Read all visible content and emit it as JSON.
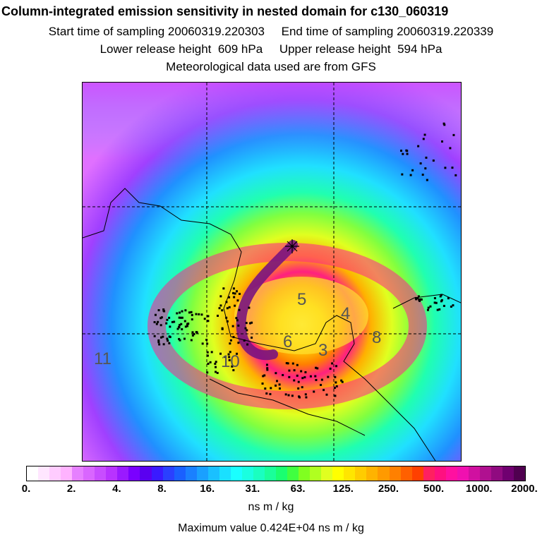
{
  "header": {
    "title": "Column-integrated emission sensitivity in nested domain for c130_060319",
    "start_label": "Start time of sampling 20060319.220303",
    "end_label": "End time of sampling 20060319.220339",
    "lower_label": "Lower release height  609 hPa",
    "upper_label": "Upper release height  594 hPa",
    "met_label": "Meteorological data used are from GFS"
  },
  "map": {
    "labels": [
      "5",
      "4",
      "6",
      "3",
      "8",
      "10",
      "11"
    ]
  },
  "colorbar": {
    "ticks": [
      "0.",
      "2.",
      "4.",
      "8.",
      "16.",
      "31.",
      "63.",
      "125.",
      "250.",
      "500.",
      "1000.",
      "2000."
    ],
    "colors": [
      "#ffffff",
      "#ffe6ff",
      "#ffccff",
      "#ffb3ff",
      "#e680ff",
      "#d966ff",
      "#c84dff",
      "#b833ff",
      "#9a1aff",
      "#7a00ff",
      "#5a00f0",
      "#3a1aff",
      "#2a40ff",
      "#1a60ff",
      "#1a80ff",
      "#1aa0ff",
      "#1ac0ff",
      "#1ae0ff",
      "#1affff",
      "#1affe0",
      "#1affc0",
      "#1aff9a",
      "#1aff70",
      "#40ff40",
      "#80ff20",
      "#b0ff20",
      "#e0ff20",
      "#ffff00",
      "#ffe600",
      "#ffcc00",
      "#ffb300",
      "#ff9a00",
      "#ff8000",
      "#ff6000",
      "#ff4000",
      "#ff2060",
      "#ff1080",
      "#ff10a0",
      "#f010b0",
      "#d010a0",
      "#b01090",
      "#900a80",
      "#700070",
      "#500050"
    ],
    "unit": "ns m / kg",
    "max_text": "Maximum value  0.424E+04 ns m / kg"
  }
}
